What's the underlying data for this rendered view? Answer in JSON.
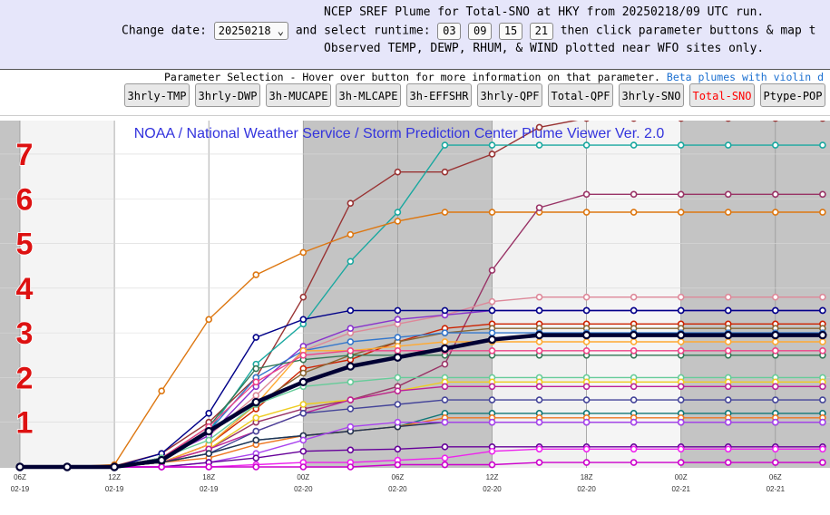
{
  "header": {
    "line1": "NCEP SREF Plume for Total-SNO at HKY from 20250218/09 UTC run.",
    "change_date_label": "Change date:",
    "date_value": "20250218",
    "runtime_label": "and select runtime:",
    "runtimes": [
      "03",
      "09",
      "15",
      "21"
    ],
    "line2_tail": "then click parameter buttons & map t",
    "line3": "Observed TEMP, DEWP, RHUM, & WIND plotted near WFO sites only."
  },
  "params": {
    "title": "Parameter Selection - Hover over button for more information on that parameter.",
    "link": "Beta plumes with violin d",
    "buttons": [
      "3hrly-TMP",
      "3hrly-DWP",
      "3h-MUCAPE",
      "3h-MLCAPE",
      "3h-EFFSHR",
      "3hrly-QPF",
      "Total-QPF",
      "3hrly-SNO",
      "Total-SNO",
      "Ptype-POP"
    ],
    "active": "Total-SNO"
  },
  "colors": {
    "header_bg": "#e6e6fa",
    "active_button_text": "#ff0000",
    "mean": "#000033",
    "title": "#3333dd"
  },
  "chart_data": {
    "type": "line",
    "title": "NOAA / National Weather Service / Storm Prediction Center Plume Viewer Ver. 2.0",
    "y_labels": [
      "1",
      "2",
      "3",
      "4",
      "5",
      "6",
      "7"
    ],
    "x_ticks": [
      {
        "t": "06Z",
        "d": "02-19"
      },
      {
        "t": "12Z",
        "d": "02-19"
      },
      {
        "t": "18Z",
        "d": "02-19"
      },
      {
        "t": "00Z",
        "d": "02-20"
      },
      {
        "t": "06Z",
        "d": "02-20"
      },
      {
        "t": "12Z",
        "d": "02-20"
      },
      {
        "t": "18Z",
        "d": "02-20"
      },
      {
        "t": "00Z",
        "d": "02-21"
      },
      {
        "t": "06Z",
        "d": "02-21"
      }
    ],
    "x_range_hours": [
      0,
      51
    ],
    "ylim": [
      0,
      7.75
    ],
    "series": [
      {
        "color": "#993333",
        "values": [
          0,
          0,
          0.02,
          0.3,
          1.0,
          2.0,
          3.8,
          5.9,
          6.6,
          6.6,
          7.0,
          7.6,
          7.8,
          7.8,
          7.8,
          7.8,
          7.8,
          7.8
        ]
      },
      {
        "color": "#1aa8a0",
        "values": [
          0,
          0,
          0,
          0.2,
          0.8,
          2.3,
          3.2,
          4.6,
          5.7,
          7.2,
          7.2,
          7.2,
          7.2,
          7.2,
          7.2,
          7.2,
          7.2,
          7.2
        ]
      },
      {
        "color": "#dd7711",
        "values": [
          0,
          0,
          0.05,
          1.7,
          3.3,
          4.3,
          4.8,
          5.2,
          5.5,
          5.7,
          5.7,
          5.7,
          5.7,
          5.7,
          5.7,
          5.7,
          5.7,
          5.7
        ]
      },
      {
        "color": "#993366",
        "values": [
          0,
          0,
          0,
          0.1,
          0.4,
          1.0,
          1.3,
          1.5,
          1.8,
          2.3,
          4.4,
          5.8,
          6.1,
          6.1,
          6.1,
          6.1,
          6.1,
          6.1
        ]
      },
      {
        "color": "#dd8899",
        "values": [
          0,
          0,
          0,
          0.2,
          0.7,
          1.6,
          2.6,
          3.0,
          3.2,
          3.4,
          3.7,
          3.8,
          3.8,
          3.8,
          3.8,
          3.8,
          3.8,
          3.8
        ]
      },
      {
        "color": "#8833cc",
        "values": [
          0,
          0,
          0,
          0.2,
          0.7,
          1.8,
          2.7,
          3.1,
          3.3,
          3.4,
          3.5,
          3.5,
          3.5,
          3.5,
          3.5,
          3.5,
          3.5,
          3.5
        ]
      },
      {
        "color": "#000088",
        "values": [
          0,
          0,
          0,
          0.3,
          1.2,
          2.9,
          3.3,
          3.5,
          3.5,
          3.5,
          3.5,
          3.5,
          3.5,
          3.5,
          3.5,
          3.5,
          3.5,
          3.5
        ]
      },
      {
        "color": "#cc2200",
        "values": [
          0,
          0,
          0,
          0.1,
          0.5,
          1.3,
          2.2,
          2.4,
          2.8,
          3.1,
          3.2,
          3.2,
          3.2,
          3.2,
          3.2,
          3.2,
          3.2,
          3.2
        ]
      },
      {
        "color": "#886633",
        "values": [
          0,
          0,
          0,
          0.1,
          0.5,
          1.4,
          2.1,
          2.5,
          2.8,
          3.0,
          3.1,
          3.1,
          3.1,
          3.1,
          3.1,
          3.1,
          3.1,
          3.1
        ]
      },
      {
        "color": "#3377cc",
        "values": [
          0,
          0,
          0,
          0.2,
          0.8,
          2.0,
          2.6,
          2.8,
          2.9,
          3.0,
          3.0,
          3.0,
          3.0,
          3.0,
          3.0,
          3.0,
          3.0,
          3.0
        ]
      },
      {
        "color": "#ffaa33",
        "values": [
          0,
          0,
          0,
          0.1,
          0.5,
          1.4,
          2.6,
          2.6,
          2.7,
          2.8,
          2.8,
          2.8,
          2.8,
          2.8,
          2.8,
          2.8,
          2.8,
          2.8
        ]
      },
      {
        "color": "#337755",
        "values": [
          0,
          0,
          0,
          0.2,
          0.9,
          2.2,
          2.4,
          2.5,
          2.5,
          2.5,
          2.5,
          2.5,
          2.5,
          2.5,
          2.5,
          2.5,
          2.5,
          2.5
        ]
      },
      {
        "color": "#ee4488",
        "values": [
          0,
          0,
          0,
          0.2,
          0.9,
          1.9,
          2.5,
          2.6,
          2.6,
          2.6,
          2.6,
          2.6,
          2.6,
          2.6,
          2.6,
          2.6,
          2.6,
          2.6
        ]
      },
      {
        "color": "#66cc99",
        "values": [
          0,
          0,
          0,
          0.2,
          0.6,
          1.4,
          1.8,
          1.9,
          2.0,
          2.0,
          2.0,
          2.0,
          2.0,
          2.0,
          2.0,
          2.0,
          2.0,
          2.0
        ]
      },
      {
        "color": "#eecc22",
        "values": [
          0,
          0,
          0,
          0.1,
          0.4,
          1.1,
          1.4,
          1.5,
          1.7,
          1.9,
          1.9,
          1.9,
          1.9,
          1.9,
          1.9,
          1.9,
          1.9,
          1.9
        ]
      },
      {
        "color": "#bb2299",
        "values": [
          0,
          0,
          0,
          0.1,
          0.4,
          0.8,
          1.2,
          1.5,
          1.7,
          1.8,
          1.8,
          1.8,
          1.8,
          1.8,
          1.8,
          1.8,
          1.8,
          1.8
        ]
      },
      {
        "color": "#444499",
        "values": [
          0,
          0,
          0,
          0.1,
          0.3,
          0.8,
          1.2,
          1.3,
          1.4,
          1.5,
          1.5,
          1.5,
          1.5,
          1.5,
          1.5,
          1.5,
          1.5,
          1.5
        ]
      },
      {
        "color": "#117777",
        "values": [
          0,
          0,
          0,
          0.1,
          0.3,
          0.6,
          0.7,
          0.8,
          0.9,
          1.2,
          1.2,
          1.2,
          1.2,
          1.2,
          1.2,
          1.2,
          1.2,
          1.2
        ]
      },
      {
        "color": "#ee7722",
        "values": [
          0,
          0,
          0,
          0.1,
          0.2,
          0.5,
          0.7,
          0.8,
          0.9,
          1.1,
          1.1,
          1.1,
          1.1,
          1.1,
          1.1,
          1.1,
          1.1,
          1.1
        ]
      },
      {
        "color": "#223355",
        "values": [
          0,
          0,
          0,
          0.1,
          0.3,
          0.6,
          0.7,
          0.8,
          0.9,
          1.0,
          1.0,
          1.0,
          1.0,
          1.0,
          1.0,
          1.0,
          1.0,
          1.0
        ]
      },
      {
        "color": "#aa44ee",
        "values": [
          0,
          0,
          0,
          0,
          0.1,
          0.3,
          0.6,
          0.9,
          1.0,
          1.0,
          1.0,
          1.0,
          1.0,
          1.0,
          1.0,
          1.0,
          1.0,
          1.0
        ]
      },
      {
        "color": "#660099",
        "values": [
          0,
          0,
          0,
          0,
          0.1,
          0.2,
          0.35,
          0.38,
          0.4,
          0.45,
          0.45,
          0.45,
          0.45,
          0.45,
          0.45,
          0.45,
          0.45,
          0.45
        ]
      },
      {
        "color": "#ee22ee",
        "values": [
          0,
          0,
          0,
          0,
          0,
          0.05,
          0.1,
          0.1,
          0.15,
          0.2,
          0.35,
          0.4,
          0.4,
          0.4,
          0.4,
          0.4,
          0.4,
          0.4
        ]
      },
      {
        "color": "#cc00cc",
        "values": [
          0,
          0,
          0,
          0,
          0,
          0,
          0,
          0,
          0.05,
          0.05,
          0.05,
          0.1,
          0.1,
          0.1,
          0.1,
          0.1,
          0.1,
          0.1
        ]
      },
      {
        "color": "#000033",
        "mean": true,
        "values": [
          0,
          0,
          0,
          0.15,
          0.8,
          1.45,
          1.9,
          2.25,
          2.45,
          2.65,
          2.85,
          2.95,
          2.95,
          2.95,
          2.95,
          2.95,
          2.95,
          2.95
        ]
      }
    ]
  }
}
